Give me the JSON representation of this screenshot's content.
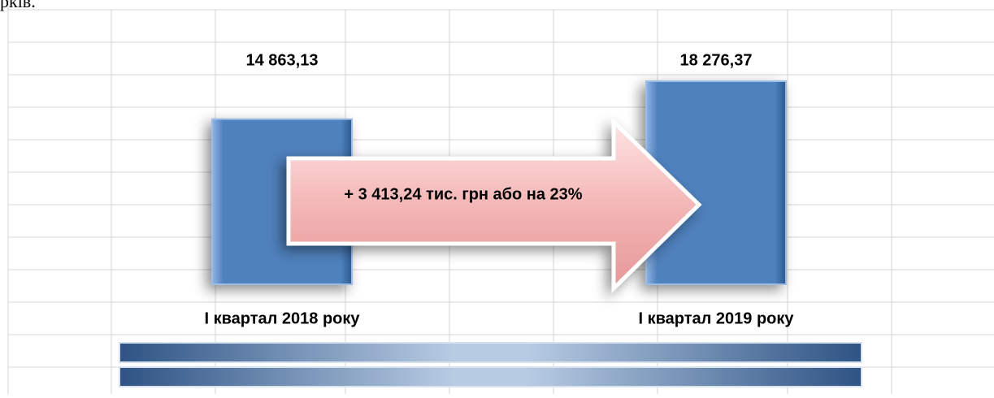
{
  "caption_fragment": "рків.",
  "chart_data": {
    "type": "bar",
    "categories": [
      "І квартал 2018 року",
      "І квартал 2019 року"
    ],
    "values": [
      14863.13,
      18276.37
    ],
    "value_labels": [
      "14 863,13",
      "18 276,37"
    ],
    "color": "#4f81bd",
    "annotation": "+ 3 413,24  тис. грн або на 23%"
  }
}
